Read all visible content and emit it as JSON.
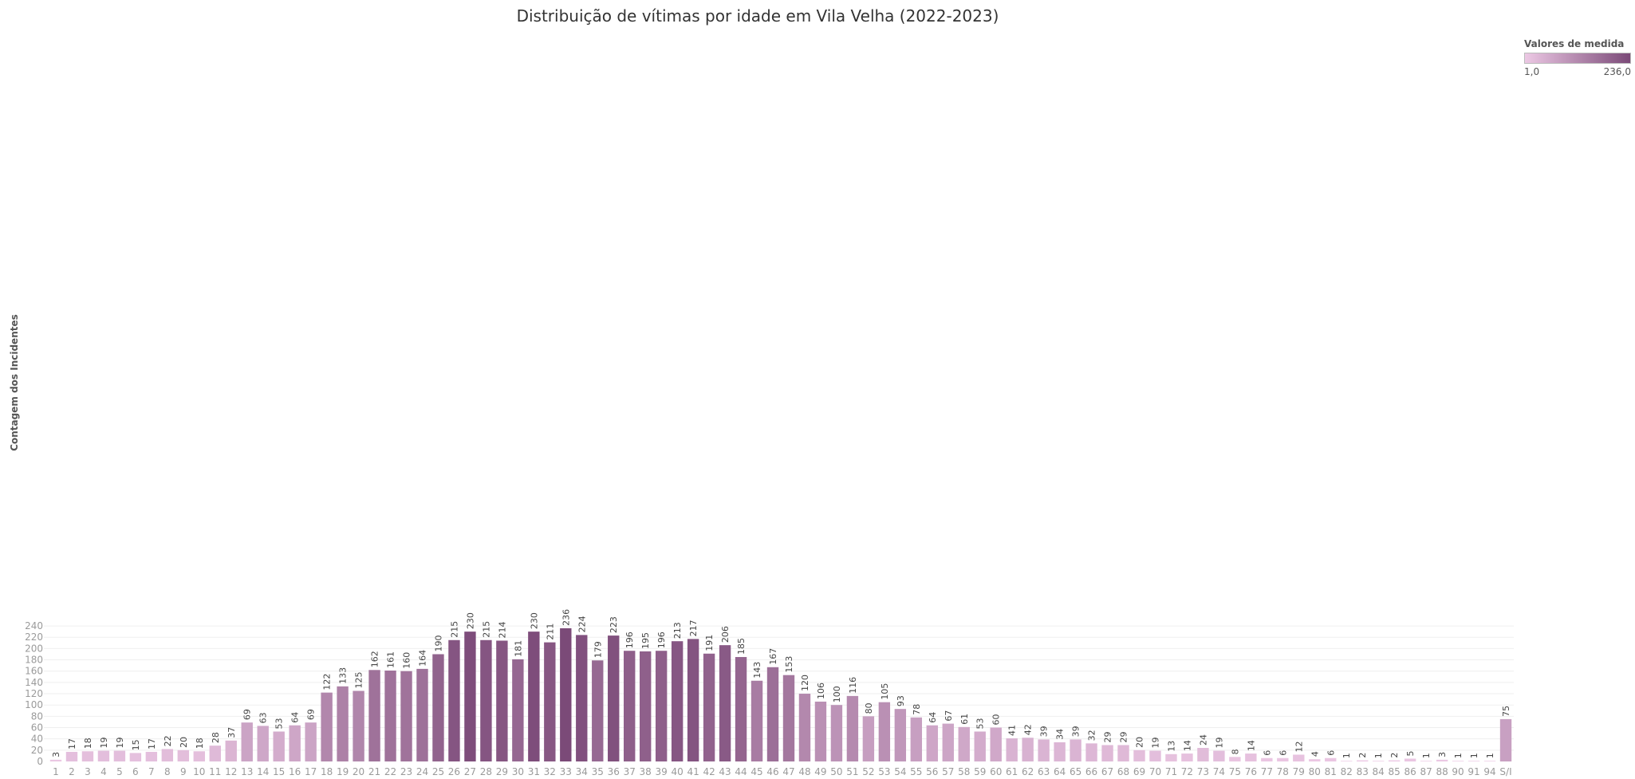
{
  "chart_data": {
    "type": "bar",
    "title": "Distribuição de vítimas por idade em Vila Velha (2022-2023)",
    "xlabel": "",
    "ylabel": "Contagem dos Incidentes",
    "ylim": [
      0,
      250
    ],
    "yticks": [
      0,
      20,
      40,
      60,
      80,
      100,
      120,
      140,
      160,
      180,
      200,
      220,
      240
    ],
    "grid": true,
    "legend": {
      "title": "Valores de medida",
      "min_label": "1,0",
      "max_label": "236,0",
      "placement": "top-right",
      "color_low": "#ecc8e4",
      "color_high": "#7b4a78"
    },
    "categories": [
      "1",
      "2",
      "3",
      "4",
      "5",
      "6",
      "7",
      "8",
      "9",
      "10",
      "11",
      "12",
      "13",
      "14",
      "15",
      "16",
      "17",
      "18",
      "19",
      "20",
      "21",
      "22",
      "23",
      "24",
      "25",
      "26",
      "27",
      "28",
      "29",
      "30",
      "31",
      "32",
      "33",
      "34",
      "35",
      "36",
      "37",
      "38",
      "39",
      "40",
      "41",
      "42",
      "43",
      "44",
      "45",
      "46",
      "47",
      "48",
      "49",
      "50",
      "51",
      "52",
      "53",
      "54",
      "55",
      "56",
      "57",
      "58",
      "59",
      "60",
      "61",
      "62",
      "63",
      "64",
      "65",
      "66",
      "67",
      "68",
      "69",
      "70",
      "71",
      "72",
      "73",
      "74",
      "75",
      "76",
      "77",
      "78",
      "79",
      "80",
      "81",
      "82",
      "83",
      "84",
      "85",
      "86",
      "87",
      "88",
      "90",
      "91",
      "94",
      "S/I"
    ],
    "values": [
      3,
      17,
      18,
      19,
      19,
      15,
      17,
      22,
      20,
      18,
      28,
      37,
      69,
      63,
      53,
      64,
      69,
      122,
      133,
      125,
      162,
      161,
      160,
      164,
      190,
      215,
      230,
      215,
      214,
      181,
      230,
      211,
      236,
      224,
      179,
      223,
      196,
      195,
      196,
      213,
      217,
      191,
      206,
      185,
      143,
      167,
      153,
      120,
      106,
      100,
      116,
      80,
      105,
      93,
      78,
      64,
      67,
      61,
      53,
      60,
      41,
      42,
      39,
      34,
      39,
      32,
      29,
      29,
      20,
      19,
      13,
      14,
      24,
      19,
      8,
      14,
      6,
      6,
      12,
      4,
      6,
      1,
      2,
      1,
      2,
      5,
      1,
      3,
      1,
      1,
      1,
      75
    ],
    "data_labels": [
      "3",
      "17",
      "18",
      "19",
      "19",
      "15",
      "17",
      "22",
      "20",
      "18",
      "28",
      "37",
      "69",
      "63",
      "53",
      "64",
      "69",
      "122",
      "133",
      "125",
      "162",
      "161",
      "160",
      "164",
      "190",
      "215",
      "230",
      "215",
      "214",
      "181",
      "230",
      "211",
      "236",
      "224",
      "179",
      "223",
      "196",
      "195",
      "196",
      "213",
      "217",
      "191",
      "206",
      "185",
      "143",
      "167",
      "153",
      "120",
      "106",
      "100",
      "116",
      "80",
      "105",
      "93",
      "78",
      "64",
      "67",
      "61",
      "53",
      "60",
      "41",
      "42",
      "39",
      "34",
      "39",
      "32",
      "29",
      "29",
      "20",
      "19",
      "13",
      "14",
      "24",
      "19",
      "8",
      "14",
      "6",
      "6",
      "12",
      "4",
      "6",
      "1",
      "2",
      "1",
      "2",
      "5",
      "1",
      "3",
      "1",
      "1",
      "1",
      "75"
    ]
  }
}
